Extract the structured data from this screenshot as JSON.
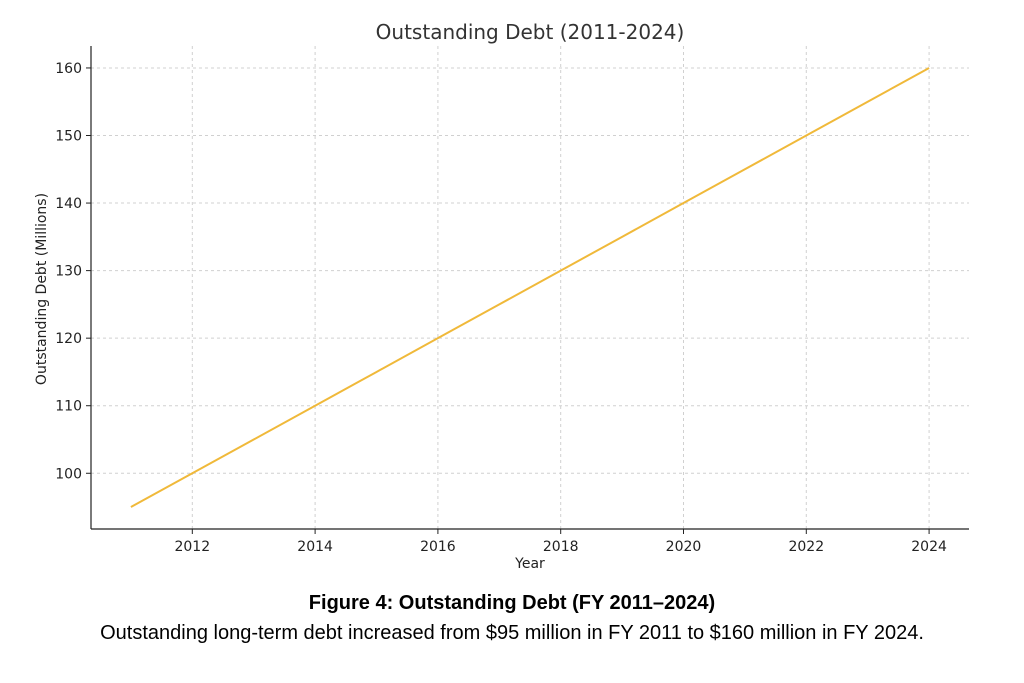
{
  "chart_data": {
    "type": "line",
    "title": "Outstanding Debt (2011-2024)",
    "xlabel": "Year",
    "ylabel": "Outstanding Debt (Millions)",
    "x": [
      2011,
      2012,
      2013,
      2014,
      2015,
      2016,
      2017,
      2018,
      2019,
      2020,
      2021,
      2022,
      2023,
      2024
    ],
    "series": [
      {
        "values": [
          95,
          100,
          105,
          110,
          115,
          120,
          125,
          130,
          135,
          140,
          145,
          150,
          155,
          160
        ],
        "color": "#F0B93A"
      }
    ],
    "xticks": [
      2012,
      2014,
      2016,
      2018,
      2020,
      2022,
      2024
    ],
    "yticks": [
      100,
      110,
      120,
      130,
      140,
      150,
      160
    ],
    "xlim": [
      2010.35,
      2024.65
    ],
    "ylim": [
      91.75,
      163.25
    ],
    "grid": true
  },
  "caption": {
    "title": "Figure 4: Outstanding Debt (FY 2011–2024)",
    "text": "Outstanding long-term debt increased from $95 million in FY 2011 to $160 million in FY 2024."
  }
}
